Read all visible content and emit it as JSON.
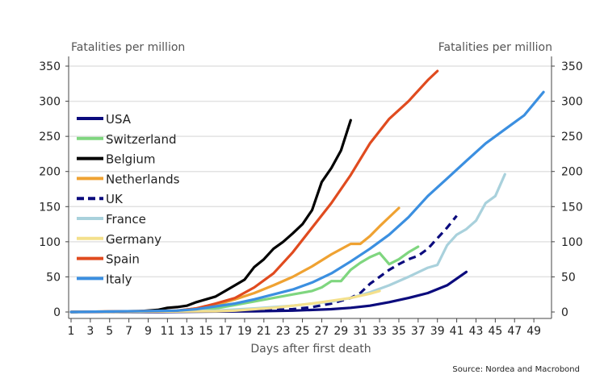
{
  "chart_data": {
    "type": "line",
    "title": "",
    "xlabel": "Days after first death",
    "ylabel": "Fatalities per million",
    "ylabel_right": "Fatalities per million",
    "xlim": [
      1,
      50
    ],
    "ylim": [
      0,
      350
    ],
    "xticks": [
      1,
      3,
      5,
      7,
      9,
      11,
      13,
      15,
      17,
      19,
      21,
      23,
      25,
      27,
      29,
      31,
      33,
      35,
      37,
      39,
      41,
      43,
      45,
      47,
      49
    ],
    "yticks": [
      0,
      50,
      100,
      150,
      200,
      250,
      300,
      350
    ],
    "grid": "horizontal",
    "legend_position": "left",
    "source": "Source: Nordea and Macrobond",
    "series": [
      {
        "name": "USA",
        "color": "#0b0b7d",
        "dash": false,
        "points": [
          [
            1,
            0
          ],
          [
            10,
            0
          ],
          [
            20,
            1
          ],
          [
            24,
            2
          ],
          [
            28,
            4
          ],
          [
            30,
            6
          ],
          [
            32,
            9
          ],
          [
            34,
            14
          ],
          [
            36,
            20
          ],
          [
            38,
            27
          ],
          [
            40,
            38
          ],
          [
            42,
            57
          ]
        ]
      },
      {
        "name": "Switzerland",
        "color": "#7fd67f",
        "dash": false,
        "points": [
          [
            1,
            0
          ],
          [
            12,
            1
          ],
          [
            16,
            5
          ],
          [
            18,
            10
          ],
          [
            20,
            15
          ],
          [
            22,
            20
          ],
          [
            24,
            25
          ],
          [
            26,
            30
          ],
          [
            27,
            35
          ],
          [
            28,
            44
          ],
          [
            29,
            44
          ],
          [
            30,
            60
          ],
          [
            31,
            70
          ],
          [
            32,
            78
          ],
          [
            33,
            84
          ],
          [
            34,
            68
          ],
          [
            35,
            75
          ],
          [
            36,
            85
          ],
          [
            37,
            93
          ]
        ]
      },
      {
        "name": "Belgium",
        "color": "#000000",
        "dash": false,
        "points": [
          [
            1,
            0
          ],
          [
            8,
            1
          ],
          [
            10,
            3
          ],
          [
            11,
            6
          ],
          [
            12,
            7
          ],
          [
            13,
            9
          ],
          [
            14,
            14
          ],
          [
            15,
            18
          ],
          [
            16,
            22
          ],
          [
            17,
            30
          ],
          [
            18,
            38
          ],
          [
            19,
            46
          ],
          [
            20,
            64
          ],
          [
            21,
            75
          ],
          [
            22,
            90
          ],
          [
            23,
            100
          ],
          [
            24,
            112
          ],
          [
            25,
            125
          ],
          [
            26,
            145
          ],
          [
            27,
            185
          ],
          [
            28,
            205
          ],
          [
            29,
            230
          ],
          [
            30,
            273
          ]
        ]
      },
      {
        "name": "Netherlands",
        "color": "#efa232",
        "dash": false,
        "points": [
          [
            1,
            0
          ],
          [
            12,
            2
          ],
          [
            14,
            5
          ],
          [
            16,
            10
          ],
          [
            18,
            18
          ],
          [
            20,
            27
          ],
          [
            22,
            38
          ],
          [
            24,
            50
          ],
          [
            26,
            65
          ],
          [
            28,
            82
          ],
          [
            30,
            97
          ],
          [
            31,
            97
          ],
          [
            32,
            108
          ],
          [
            33,
            122
          ],
          [
            34,
            135
          ],
          [
            35,
            148
          ]
        ]
      },
      {
        "name": "UK",
        "color": "#0b0b7d",
        "dash": true,
        "points": [
          [
            1,
            0
          ],
          [
            16,
            1
          ],
          [
            20,
            2
          ],
          [
            24,
            4
          ],
          [
            26,
            7
          ],
          [
            28,
            12
          ],
          [
            30,
            20
          ],
          [
            31,
            27
          ],
          [
            32,
            40
          ],
          [
            33,
            50
          ],
          [
            34,
            60
          ],
          [
            35,
            68
          ],
          [
            36,
            75
          ],
          [
            37,
            80
          ],
          [
            38,
            90
          ],
          [
            39,
            105
          ],
          [
            40,
            120
          ],
          [
            41,
            137
          ]
        ]
      },
      {
        "name": "France",
        "color": "#a9d1dc",
        "dash": false,
        "points": [
          [
            1,
            0
          ],
          [
            16,
            2
          ],
          [
            20,
            5
          ],
          [
            24,
            9
          ],
          [
            28,
            15
          ],
          [
            30,
            20
          ],
          [
            32,
            28
          ],
          [
            34,
            38
          ],
          [
            36,
            50
          ],
          [
            38,
            63
          ],
          [
            39,
            67
          ],
          [
            40,
            95
          ],
          [
            41,
            110
          ],
          [
            42,
            118
          ],
          [
            43,
            130
          ],
          [
            44,
            155
          ],
          [
            45,
            165
          ],
          [
            46,
            196
          ]
        ]
      },
      {
        "name": "Germany",
        "color": "#f4e08c",
        "dash": false,
        "points": [
          [
            1,
            0
          ],
          [
            16,
            1
          ],
          [
            18,
            2
          ],
          [
            20,
            4
          ],
          [
            22,
            6
          ],
          [
            24,
            9
          ],
          [
            26,
            12
          ],
          [
            28,
            16
          ],
          [
            30,
            20
          ],
          [
            32,
            26
          ],
          [
            33,
            30
          ]
        ]
      },
      {
        "name": "Spain",
        "color": "#e04b1f",
        "dash": false,
        "points": [
          [
            1,
            0
          ],
          [
            12,
            2
          ],
          [
            14,
            5
          ],
          [
            16,
            12
          ],
          [
            18,
            20
          ],
          [
            20,
            35
          ],
          [
            22,
            55
          ],
          [
            24,
            85
          ],
          [
            26,
            120
          ],
          [
            28,
            155
          ],
          [
            30,
            195
          ],
          [
            32,
            240
          ],
          [
            34,
            275
          ],
          [
            36,
            300
          ],
          [
            38,
            330
          ],
          [
            39,
            343
          ]
        ]
      },
      {
        "name": "Italy",
        "color": "#3b8fe0",
        "dash": false,
        "points": [
          [
            1,
            0
          ],
          [
            12,
            2
          ],
          [
            14,
            4
          ],
          [
            16,
            8
          ],
          [
            18,
            12
          ],
          [
            20,
            18
          ],
          [
            22,
            25
          ],
          [
            24,
            32
          ],
          [
            26,
            42
          ],
          [
            28,
            55
          ],
          [
            30,
            72
          ],
          [
            32,
            90
          ],
          [
            34,
            110
          ],
          [
            36,
            135
          ],
          [
            38,
            165
          ],
          [
            40,
            190
          ],
          [
            42,
            215
          ],
          [
            44,
            240
          ],
          [
            46,
            260
          ],
          [
            48,
            280
          ],
          [
            50,
            313
          ]
        ]
      }
    ]
  }
}
